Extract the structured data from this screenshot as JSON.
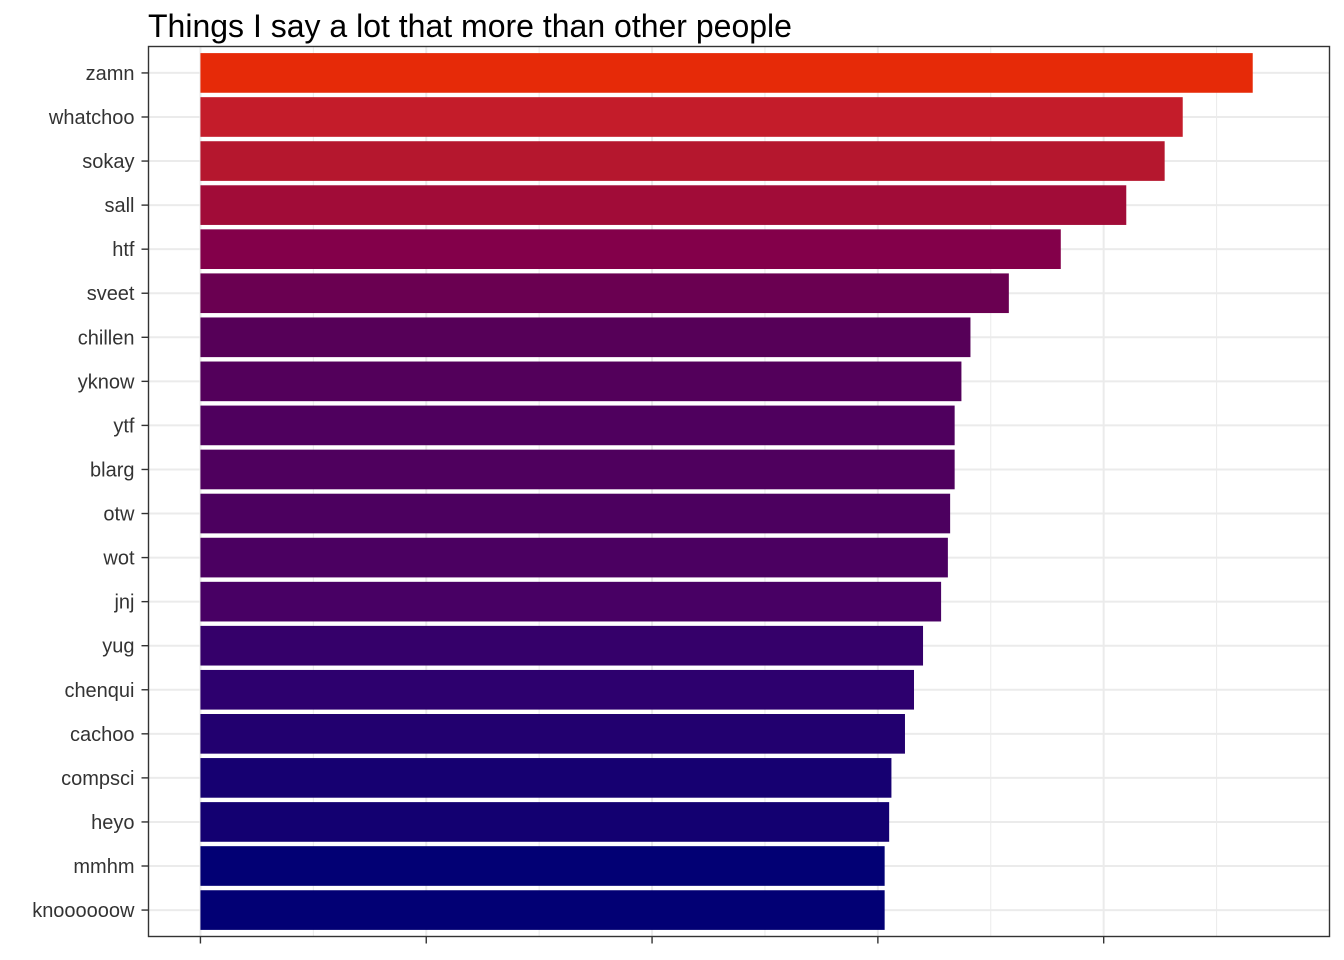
{
  "chart_data": {
    "type": "bar",
    "orientation": "horizontal",
    "title": "Things I say a lot that more than other people",
    "xlabel": "",
    "ylabel": "",
    "categories": [
      "zamn",
      "whatchoo",
      "sokay",
      "sall",
      "htf",
      "sveet",
      "chillen",
      "yknow",
      "ytf",
      "blarg",
      "otw",
      "wot",
      "jnj",
      "yug",
      "chenqui",
      "cachoo",
      "compsci",
      "heyo",
      "mmhm",
      "knoooooow"
    ],
    "values": [
      4.66,
      4.35,
      4.27,
      4.1,
      3.81,
      3.58,
      3.41,
      3.37,
      3.34,
      3.34,
      3.32,
      3.31,
      3.28,
      3.2,
      3.16,
      3.12,
      3.06,
      3.05,
      3.03,
      3.03
    ],
    "colors": [
      "#e62a08",
      "#c41c2a",
      "#b5172e",
      "#a10c38",
      "#83004a",
      "#6a0051",
      "#560058",
      "#53005b",
      "#4f005e",
      "#4f005e",
      "#4c005f",
      "#4b0061",
      "#480064",
      "#35006a",
      "#2d006e",
      "#22006f",
      "#160071",
      "#130071",
      "#020074",
      "#020074"
    ],
    "xlim": [
      -0.23,
      5.0
    ],
    "x_major_ticks": [
      0,
      1,
      2,
      3,
      4
    ],
    "x_minor_gridlines": [
      0.5,
      1.5,
      2.5,
      3.5,
      4.5
    ],
    "grid": true,
    "legend": "none",
    "panel_border_color": "#333333",
    "grid_color": "#ebebeb"
  }
}
